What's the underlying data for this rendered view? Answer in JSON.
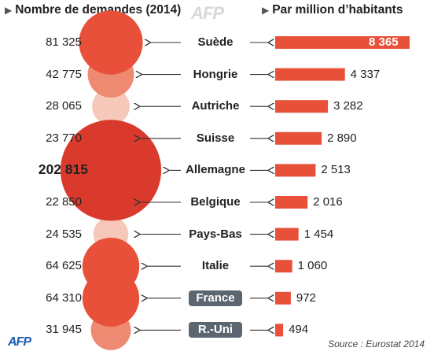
{
  "header": {
    "left_title": "Nombre de demandes (2014)",
    "right_title": "Par million d’habitants",
    "triangle_icon": "▶"
  },
  "source": "Source : Eurostat 2014",
  "logo": "AFP",
  "watermark": "AFP",
  "colors": {
    "bar": "#e8503a",
    "bubble_large": "#e8503a",
    "bubble_highlight": "#d93a2b",
    "bubble_mid": "#ee8a72",
    "bubble_light": "#f6c8ba",
    "arrow": "#333333",
    "country_highlight_bg": "#5b6670"
  },
  "chart_data": {
    "type": "bar",
    "title": "",
    "categories": [
      "Suède",
      "Hongrie",
      "Autriche",
      "Suisse",
      "Allemagne",
      "Belgique",
      "Pays-Bas",
      "Italie",
      "France",
      "R.-Uni"
    ],
    "category_labels": [
      "Suède",
      "Hongrie",
      "Autriche",
      "Suisse",
      "Allemagne",
      "Belgique",
      "Pays-Bas",
      "Italie",
      "France",
      "R.-Uni"
    ],
    "requests": [
      81325,
      42775,
      28065,
      23770,
      202815,
      22850,
      24535,
      64625,
      64310,
      31945
    ],
    "requests_labels": [
      "81 325",
      "42 775",
      "28 065",
      "23 770",
      "202 815",
      "22 850",
      "24 535",
      "64 625",
      "64 310",
      "31 945"
    ],
    "per_million": [
      8365,
      4337,
      3282,
      2890,
      2513,
      2016,
      1454,
      1060,
      972,
      494
    ],
    "per_million_labels": [
      "8 365",
      "4 337",
      "3 282",
      "2 890",
      "2 513",
      "2 016",
      "1 454",
      "1 060",
      "972",
      "494"
    ],
    "highlighted": [
      "France",
      "R.-Uni"
    ],
    "emphasized": [
      "Allemagne"
    ],
    "bubble_shade": [
      "large",
      "mid",
      "light",
      "light",
      "highlight",
      "light",
      "light",
      "large",
      "large",
      "mid"
    ],
    "xlim": [
      0,
      8365
    ],
    "grid": false,
    "legend": "none"
  }
}
